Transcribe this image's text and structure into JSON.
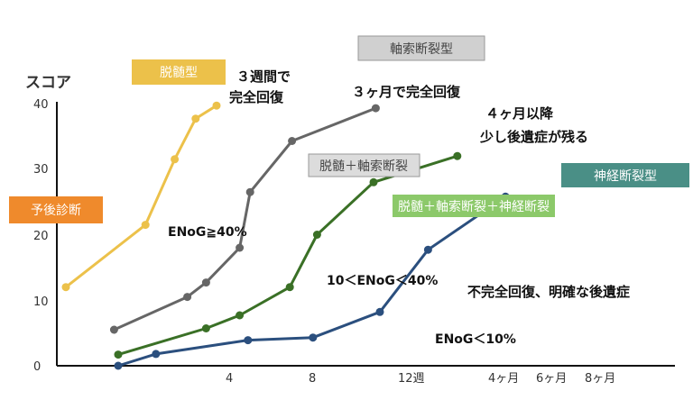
{
  "chart_data": {
    "type": "line",
    "ylabel": "スコア",
    "ylim": [
      0,
      40
    ],
    "yticks": [
      0,
      10,
      20,
      30,
      40
    ],
    "xticks": [
      "4",
      "8",
      "12週",
      "4ヶ月",
      "6ヶ月",
      "8ヶ月"
    ],
    "series": [
      {
        "name": "脱髄型",
        "color": "#ecc14a",
        "points": [
          [
            -2.5,
            12
          ],
          [
            1.3,
            21.5
          ],
          [
            2.7,
            31.5
          ],
          [
            3.7,
            37.7
          ],
          [
            4.7,
            39.7
          ]
        ]
      },
      {
        "name": "軸索断裂型",
        "color": "#666666",
        "points": [
          [
            -0.2,
            5.5
          ],
          [
            3.3,
            10.5
          ],
          [
            4.2,
            12.7
          ],
          [
            5.8,
            18
          ],
          [
            6.3,
            26.5
          ],
          [
            8.3,
            34.3
          ],
          [
            12.3,
            39.3
          ]
        ]
      },
      {
        "name": "脱髄＋軸索断裂＋神経断裂",
        "color": "#3a7026",
        "points": [
          [
            0,
            1.7
          ],
          [
            4.2,
            5.7
          ],
          [
            5.8,
            7.7
          ],
          [
            8.2,
            12
          ],
          [
            9.5,
            20
          ],
          [
            12.2,
            28
          ],
          [
            16.2,
            32
          ]
        ]
      },
      {
        "name": "神経断裂型",
        "color": "#2b4f7e",
        "points": [
          [
            0,
            0
          ],
          [
            1.8,
            1.8
          ],
          [
            6.2,
            3.9
          ],
          [
            9.3,
            4.3
          ],
          [
            12.5,
            8.2
          ],
          [
            14.8,
            17.7
          ],
          [
            18.5,
            25.8
          ]
        ]
      }
    ],
    "labels": {
      "prognosis": "予後診断",
      "demyelination": "脱髄型",
      "axonotmesis": "軸索断裂型",
      "demyelination_axonotmesis": "脱髄＋軸索断裂",
      "demyelination_axon_neuro": "脱髄＋軸索断裂＋神経断裂",
      "neurotmesis": "神経断裂型"
    },
    "annotations": {
      "recovery_3w_line1": "３週間で",
      "recovery_3w_line2": "完全回復",
      "recovery_3m": "３ヶ月で完全回復",
      "residual_line1": "４ヶ月以降",
      "residual_line2": "少し後遺症が残る",
      "enog_ge40": "ENoG≧40%",
      "enog_mid": "10＜ENoG＜40%",
      "incomplete": "不完全回復、明確な後遺症",
      "enog_lt10": "ENoG＜10%"
    },
    "colors": {
      "prognosis_box": "#ef8a2c",
      "demyelination_box": "#ecc14a",
      "axonotmesis_box": "#d0d0d0",
      "mixed_box": "#dcdcdc",
      "triple_box": "#8cc96a",
      "neurotmesis_box": "#4a8f86"
    }
  }
}
